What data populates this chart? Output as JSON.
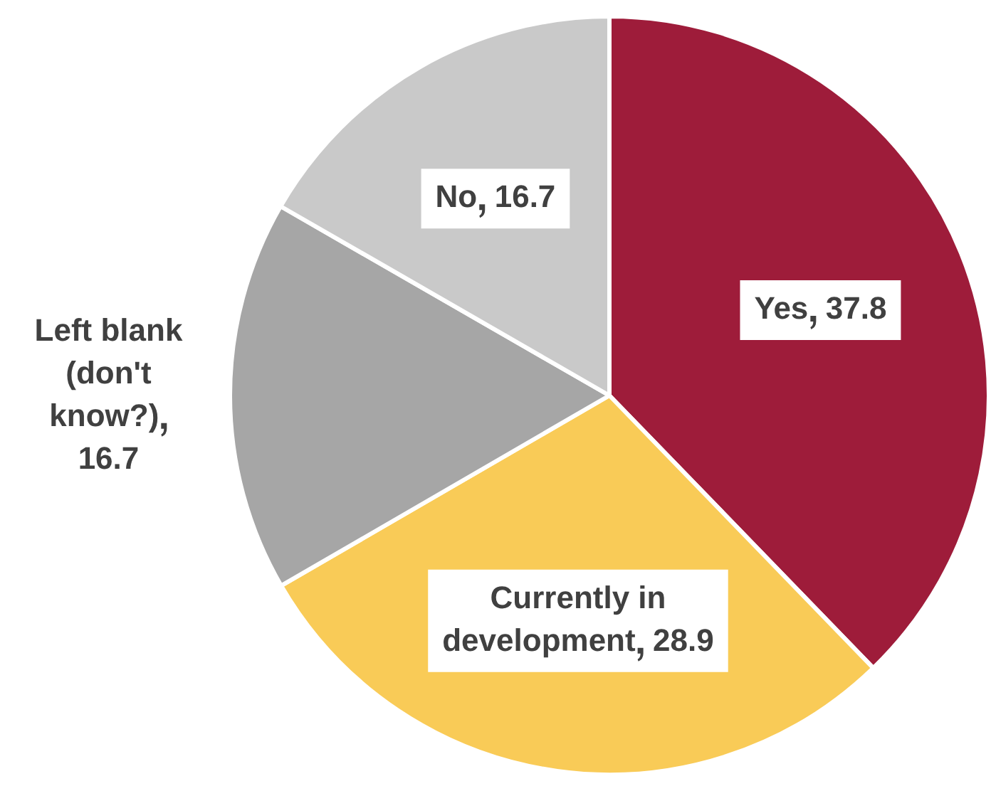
{
  "chart_data": {
    "type": "pie",
    "categories": [
      "Yes",
      "Currently in development",
      "Left blank (don't know?)",
      "No"
    ],
    "values": [
      37.8,
      28.9,
      16.7,
      16.7
    ],
    "colors": [
      "#9e1c3a",
      "#f9cb57",
      "#a6a6a6",
      "#c9c9c9"
    ],
    "data_labels": true,
    "legend": false
  }
}
